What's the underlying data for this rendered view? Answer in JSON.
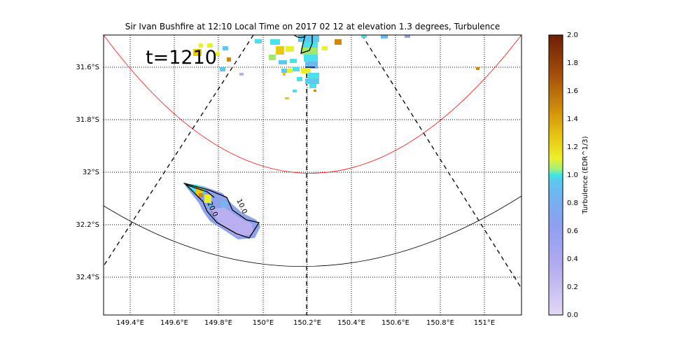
{
  "title": "Sir Ivan Bushfire at 12:10 Local Time on 2017 02 12 at elevation 1.3 degrees, Turbulence",
  "time_label": "t=1210",
  "map": {
    "lon_ticks": [
      "149.4°E",
      "149.6°E",
      "149.8°E",
      "150°E",
      "150.2°E",
      "150.4°E",
      "150.6°E",
      "150.8°E",
      "151°E"
    ],
    "lat_ticks": [
      "31.6°S",
      "31.8°S",
      "32°S",
      "32.2°S",
      "32.4°S"
    ],
    "contour_labels": [
      "10.0",
      "20.0"
    ]
  },
  "colorbar": {
    "label": "Turbulence (EDR^1/3)",
    "ticks": [
      "0.0",
      "0.2",
      "0.4",
      "0.6",
      "0.8",
      "1.0",
      "1.2",
      "1.4",
      "1.6",
      "1.8",
      "2.0"
    ],
    "colors": [
      "#e3d8f5",
      "#b9aef0",
      "#8fa2ec",
      "#6eb7f0",
      "#4ee0ea",
      "#e9ef30",
      "#e8c810",
      "#cf8a0c",
      "#a34e0a",
      "#6e1e06"
    ]
  }
}
